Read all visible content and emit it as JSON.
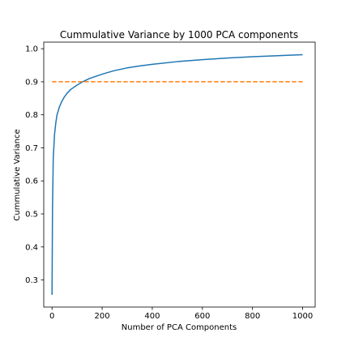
{
  "chart_data": {
    "type": "line",
    "title": "Cummulative Variance by 1000 PCA components",
    "xlabel": "Number of PCA Components",
    "ylabel": "Cummulative Variance",
    "xlim": [
      -33,
      1050
    ],
    "ylim": [
      0.218,
      1.02
    ],
    "xticks": [
      0,
      200,
      400,
      600,
      800,
      1000
    ],
    "xtick_labels": [
      "0",
      "200",
      "400",
      "600",
      "800",
      "1000"
    ],
    "yticks": [
      0.3,
      0.4,
      0.5,
      0.6,
      0.7,
      0.8,
      0.9,
      1.0
    ],
    "ytick_labels": [
      "0.3",
      "0.4",
      "0.5",
      "0.6",
      "0.7",
      "0.8",
      "0.9",
      "1.0"
    ],
    "grid": false,
    "series": [
      {
        "color": "#1f77b4",
        "style": "solid",
        "x": [
          0,
          2,
          5,
          10,
          15,
          20,
          30,
          40,
          50,
          60,
          75,
          100,
          125,
          150,
          200,
          250,
          300,
          350,
          400,
          500,
          600,
          700,
          800,
          900,
          1000
        ],
        "y": [
          0.255,
          0.52,
          0.67,
          0.74,
          0.775,
          0.8,
          0.825,
          0.842,
          0.855,
          0.865,
          0.877,
          0.89,
          0.901,
          0.91,
          0.923,
          0.934,
          0.942,
          0.948,
          0.953,
          0.961,
          0.967,
          0.972,
          0.976,
          0.979,
          0.982
        ]
      },
      {
        "color": "#ff7f0e",
        "style": "dashed",
        "x": [
          0,
          1000
        ],
        "y": [
          0.9,
          0.9
        ]
      }
    ]
  }
}
